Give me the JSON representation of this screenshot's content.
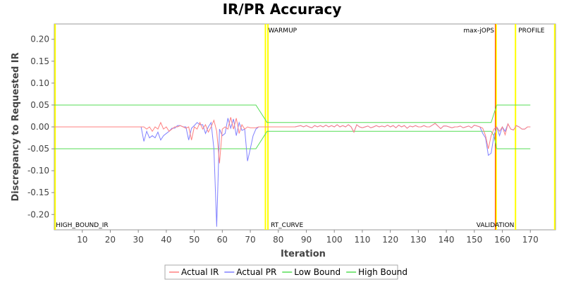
{
  "chart_data": {
    "type": "line",
    "title": "IR/PR Accuracy",
    "xlabel": "Iteration",
    "ylabel": "Discrepancy to Requested IR",
    "xlim": [
      0,
      179
    ],
    "ylim": [
      -0.235,
      0.235
    ],
    "x_ticks": [
      10,
      20,
      30,
      40,
      50,
      60,
      70,
      80,
      90,
      100,
      110,
      120,
      130,
      140,
      150,
      160,
      170
    ],
    "y_ticks": [
      -0.2,
      -0.15,
      -0.1,
      -0.05,
      0.0,
      0.05,
      0.1,
      0.15,
      0.2
    ],
    "grid": false,
    "legend_position": "bottom",
    "series": [
      {
        "name": "Actual IR",
        "color": "#ff8080",
        "points": [
          [
            0,
            0
          ],
          [
            32,
            0
          ],
          [
            33,
            -0.005
          ],
          [
            34,
            0
          ],
          [
            35,
            -0.01
          ],
          [
            36,
            0
          ],
          [
            37,
            -0.005
          ],
          [
            38,
            0.01
          ],
          [
            39,
            -0.005
          ],
          [
            40,
            0
          ],
          [
            41,
            -0.01
          ],
          [
            42,
            -0.005
          ],
          [
            43,
            0
          ],
          [
            44,
            0
          ],
          [
            45,
            0.003
          ],
          [
            46,
            0
          ],
          [
            47,
            -0.003
          ],
          [
            48,
            0
          ],
          [
            49,
            -0.03
          ],
          [
            50,
            0
          ],
          [
            51,
            -0.005
          ],
          [
            52,
            0.01
          ],
          [
            53,
            -0.005
          ],
          [
            54,
            0.005
          ],
          [
            55,
            -0.012
          ],
          [
            56,
            0
          ],
          [
            57,
            0.015
          ],
          [
            58,
            -0.01
          ],
          [
            59,
            -0.083
          ],
          [
            60,
            -0.005
          ],
          [
            61,
            0
          ],
          [
            62,
            -0.005
          ],
          [
            63,
            0.022
          ],
          [
            64,
            -0.005
          ],
          [
            65,
            0.02
          ],
          [
            66,
            -0.015
          ],
          [
            67,
            0.005
          ],
          [
            68,
            -0.005
          ],
          [
            69,
            0
          ],
          [
            70,
            -0.002
          ],
          [
            71,
            -0.002
          ],
          [
            72,
            -0.002
          ],
          [
            73,
            0
          ],
          [
            74,
            0
          ],
          [
            76,
            0
          ],
          [
            78,
            0
          ],
          [
            80,
            0
          ],
          [
            82,
            0
          ],
          [
            84,
            0
          ],
          [
            86,
            0
          ],
          [
            88,
            0.003
          ],
          [
            89,
            0
          ],
          [
            90,
            0.003
          ],
          [
            91,
            0
          ],
          [
            92,
            -0.002
          ],
          [
            93,
            0.003
          ],
          [
            94,
            0
          ],
          [
            95,
            0.003
          ],
          [
            96,
            0
          ],
          [
            97,
            0.004
          ],
          [
            98,
            0
          ],
          [
            99,
            0.003
          ],
          [
            100,
            0
          ],
          [
            101,
            0.005
          ],
          [
            102,
            0
          ],
          [
            103,
            0.003
          ],
          [
            104,
            0
          ],
          [
            105,
            0.005
          ],
          [
            106,
            0
          ],
          [
            107,
            -0.012
          ],
          [
            108,
            0.005
          ],
          [
            109,
            0
          ],
          [
            110,
            -0.002
          ],
          [
            111,
            0
          ],
          [
            112,
            0.002
          ],
          [
            113,
            -0.002
          ],
          [
            114,
            0
          ],
          [
            115,
            0.003
          ],
          [
            116,
            0
          ],
          [
            117,
            0.002
          ],
          [
            118,
            0
          ],
          [
            119,
            0.004
          ],
          [
            120,
            0
          ],
          [
            121,
            0.003
          ],
          [
            122,
            -0.002
          ],
          [
            123,
            0.004
          ],
          [
            124,
            0
          ],
          [
            125,
            0.003
          ],
          [
            126,
            -0.003
          ],
          [
            127,
            0.002
          ],
          [
            128,
            0
          ],
          [
            129,
            0.003
          ],
          [
            130,
            0
          ],
          [
            131,
            0
          ],
          [
            132,
            0.003
          ],
          [
            133,
            0
          ],
          [
            134,
            0
          ],
          [
            135,
            0.004
          ],
          [
            136,
            0.008
          ],
          [
            137,
            0.002
          ],
          [
            138,
            -0.004
          ],
          [
            139,
            0.002
          ],
          [
            140,
            0.002
          ],
          [
            141,
            0
          ],
          [
            142,
            -0.002
          ],
          [
            143,
            0
          ],
          [
            144,
            0
          ],
          [
            145,
            0.002
          ],
          [
            146,
            -0.002
          ],
          [
            147,
            0
          ],
          [
            148,
            0.002
          ],
          [
            149,
            -0.002
          ],
          [
            150,
            0.004
          ],
          [
            151,
            0.002
          ],
          [
            152,
            0
          ],
          [
            153,
            -0.003
          ],
          [
            154,
            -0.02
          ],
          [
            155,
            -0.05
          ],
          [
            156,
            -0.02
          ],
          [
            157,
            -0.005
          ],
          [
            158,
            0
          ],
          [
            159,
            -0.01
          ],
          [
            160,
            0
          ],
          [
            161,
            -0.018
          ],
          [
            162,
            0.007
          ],
          [
            163,
            -0.005
          ],
          [
            164,
            -0.007
          ],
          [
            165,
            0.003
          ],
          [
            166,
            0
          ],
          [
            167,
            -0.005
          ],
          [
            168,
            -0.005
          ],
          [
            169,
            0
          ],
          [
            170,
            0
          ]
        ]
      },
      {
        "name": "Actual PR",
        "color": "#8080ff",
        "points": [
          [
            0,
            0
          ],
          [
            31,
            0
          ],
          [
            32,
            -0.033
          ],
          [
            33,
            -0.01
          ],
          [
            34,
            -0.025
          ],
          [
            35,
            -0.02
          ],
          [
            36,
            -0.025
          ],
          [
            37,
            -0.012
          ],
          [
            38,
            -0.03
          ],
          [
            39,
            -0.02
          ],
          [
            40,
            -0.015
          ],
          [
            41,
            -0.01
          ],
          [
            42,
            -0.003
          ],
          [
            43,
            -0.003
          ],
          [
            44,
            0.003
          ],
          [
            45,
            0.003
          ],
          [
            46,
            0
          ],
          [
            47,
            0
          ],
          [
            48,
            -0.03
          ],
          [
            49,
            -0.003
          ],
          [
            50,
            0.003
          ],
          [
            51,
            0.01
          ],
          [
            52,
            0.005
          ],
          [
            53,
            0.005
          ],
          [
            54,
            -0.015
          ],
          [
            55,
            0
          ],
          [
            56,
            0.01
          ],
          [
            57,
            -0.05
          ],
          [
            58,
            -0.228
          ],
          [
            59,
            -0.005
          ],
          [
            60,
            -0.02
          ],
          [
            61,
            -0.015
          ],
          [
            62,
            0.02
          ],
          [
            63,
            -0.003
          ],
          [
            64,
            0.018
          ],
          [
            65,
            -0.02
          ],
          [
            66,
            0.01
          ],
          [
            67,
            -0.008
          ],
          [
            68,
            -0.005
          ],
          [
            69,
            -0.078
          ],
          [
            70,
            -0.05
          ],
          [
            71,
            -0.02
          ],
          [
            72,
            -0.005
          ],
          [
            73,
            0
          ],
          [
            74,
            0
          ],
          [
            76,
            0
          ],
          [
            78,
            0
          ],
          [
            80,
            0
          ],
          [
            82,
            0
          ],
          [
            84,
            0
          ],
          [
            86,
            0
          ],
          [
            88,
            0.003
          ],
          [
            89,
            0
          ],
          [
            90,
            0.003
          ],
          [
            91,
            0
          ],
          [
            92,
            -0.002
          ],
          [
            93,
            0.003
          ],
          [
            94,
            0
          ],
          [
            95,
            0.003
          ],
          [
            96,
            0
          ],
          [
            97,
            0.004
          ],
          [
            98,
            0
          ],
          [
            99,
            0.003
          ],
          [
            100,
            0
          ],
          [
            101,
            0.005
          ],
          [
            102,
            0
          ],
          [
            103,
            0.003
          ],
          [
            104,
            0
          ],
          [
            105,
            0.005
          ],
          [
            106,
            0
          ],
          [
            107,
            -0.012
          ],
          [
            108,
            0.005
          ],
          [
            109,
            0
          ],
          [
            110,
            -0.002
          ],
          [
            111,
            0
          ],
          [
            112,
            0.002
          ],
          [
            113,
            -0.002
          ],
          [
            114,
            0
          ],
          [
            115,
            0.003
          ],
          [
            116,
            0
          ],
          [
            117,
            0.002
          ],
          [
            118,
            0
          ],
          [
            119,
            0.004
          ],
          [
            120,
            0
          ],
          [
            121,
            0.003
          ],
          [
            122,
            -0.002
          ],
          [
            123,
            0.004
          ],
          [
            124,
            0
          ],
          [
            125,
            0.003
          ],
          [
            126,
            -0.003
          ],
          [
            127,
            0.002
          ],
          [
            128,
            0
          ],
          [
            129,
            0.003
          ],
          [
            130,
            0
          ],
          [
            131,
            0
          ],
          [
            132,
            0.003
          ],
          [
            133,
            0
          ],
          [
            134,
            0
          ],
          [
            135,
            0.004
          ],
          [
            136,
            0.008
          ],
          [
            137,
            0.002
          ],
          [
            138,
            -0.004
          ],
          [
            139,
            0.002
          ],
          [
            140,
            0.002
          ],
          [
            141,
            0
          ],
          [
            142,
            -0.002
          ],
          [
            143,
            0
          ],
          [
            144,
            0
          ],
          [
            145,
            0.002
          ],
          [
            146,
            -0.002
          ],
          [
            147,
            0
          ],
          [
            148,
            0.002
          ],
          [
            149,
            -0.002
          ],
          [
            150,
            0.004
          ],
          [
            151,
            0.002
          ],
          [
            152,
            0
          ],
          [
            153,
            -0.015
          ],
          [
            154,
            -0.025
          ],
          [
            155,
            -0.065
          ],
          [
            156,
            -0.06
          ],
          [
            157,
            -0.02
          ],
          [
            158,
            0
          ],
          [
            159,
            -0.02
          ],
          [
            160,
            0
          ],
          [
            161,
            -0.01
          ],
          [
            162,
            0.007
          ],
          [
            163,
            -0.005
          ],
          [
            164,
            -0.007
          ],
          [
            165,
            0.003
          ],
          [
            166,
            0
          ],
          [
            167,
            -0.005
          ],
          [
            168,
            -0.005
          ],
          [
            169,
            0
          ],
          [
            170,
            0
          ]
        ]
      },
      {
        "name": "Low Bound",
        "color": "#55dd55",
        "points": [
          [
            0,
            -0.05
          ],
          [
            72,
            -0.05
          ],
          [
            74,
            -0.03
          ],
          [
            76,
            -0.01
          ],
          [
            78,
            -0.01
          ],
          [
            156,
            -0.01
          ],
          [
            157,
            -0.02
          ],
          [
            158,
            -0.05
          ],
          [
            170,
            -0.05
          ]
        ]
      },
      {
        "name": "High Bound",
        "color": "#55dd55",
        "points": [
          [
            0,
            0.05
          ],
          [
            72,
            0.05
          ],
          [
            74,
            0.03
          ],
          [
            76,
            0.01
          ],
          [
            78,
            0.01
          ],
          [
            156,
            0.01
          ],
          [
            157,
            0.03
          ],
          [
            158,
            0.05
          ],
          [
            170,
            0.05
          ]
        ]
      }
    ],
    "markers": [
      {
        "x": 0.3,
        "label": "HIGH_BOUND_IR",
        "color": "#ffff00",
        "label_pos": "bottom"
      },
      {
        "x": 75.4,
        "label": "WARMUP",
        "color": "#ffff00",
        "label_pos": "top"
      },
      {
        "x": 76.3,
        "label": "RT_CURVE",
        "color": "#ffff00",
        "label_pos": "bottom"
      },
      {
        "x": 157.6,
        "label": "max-jOPS",
        "color": "#ff0000",
        "label_pos": "top"
      },
      {
        "x": 157.8,
        "label": "VALIDATION",
        "color": "#ffff00",
        "label_pos": "bottom"
      },
      {
        "x": 164.7,
        "label": "PROFILE",
        "color": "#ffff00",
        "label_pos": "top"
      },
      {
        "x": 178.7,
        "label": "",
        "color": "#ffff00",
        "label_pos": "top"
      }
    ]
  }
}
